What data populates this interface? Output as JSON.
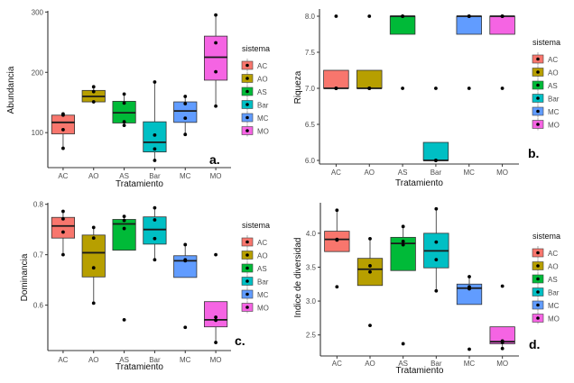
{
  "figure": {
    "legend_title": "sistema",
    "colors": {
      "AC": "#F8766D",
      "AO": "#B79F00",
      "AS": "#00BA38",
      "Bar": "#00BFC4",
      "MC": "#619CFF",
      "MO": "#F564E3"
    }
  },
  "chart_data": [
    {
      "type": "box",
      "panel_label": "a.",
      "title": "",
      "xlabel": "Tratamiento",
      "ylabel": "Abundancia",
      "ylim": [
        42,
        302
      ],
      "yticks": [
        100,
        200,
        300
      ],
      "ytick_labels": [
        "100",
        "200",
        "300"
      ],
      "categories": [
        "AC",
        "AO",
        "AS",
        "Bar",
        "MC",
        "MO"
      ],
      "legend": {
        "title": "sistema",
        "entries": [
          "AC",
          "AO",
          "AS",
          "Bar",
          "MC",
          "MO"
        ],
        "placement": "right"
      },
      "grid": false,
      "boxes": [
        {
          "category": "AC",
          "lower": 74,
          "q1": 98,
          "median": 117,
          "q3": 129,
          "upper": 131,
          "points": [
            131,
            129,
            105,
            74
          ]
        },
        {
          "category": "AO",
          "lower": 151,
          "q1": 151,
          "median": 160,
          "q3": 170,
          "upper": 176,
          "points": [
            176,
            168,
            151
          ]
        },
        {
          "category": "AS",
          "lower": 112,
          "q1": 116,
          "median": 133,
          "q3": 152,
          "upper": 164,
          "points": [
            164,
            149,
            118,
            112
          ]
        },
        {
          "category": "Bar",
          "lower": 54,
          "q1": 68,
          "median": 84,
          "q3": 118,
          "upper": 184,
          "points": [
            184,
            96,
            73,
            54
          ]
        },
        {
          "category": "MC",
          "lower": 97,
          "q1": 117,
          "median": 136,
          "q3": 151,
          "upper": 160,
          "points": [
            160,
            148,
            124,
            97
          ]
        },
        {
          "category": "MO",
          "lower": 144,
          "q1": 187,
          "median": 225,
          "q3": 260,
          "upper": 295,
          "points": [
            295,
            249,
            201,
            144
          ]
        }
      ]
    },
    {
      "type": "box",
      "panel_label": "b.",
      "title": "",
      "xlabel": "Tratamiento",
      "ylabel": "Riqueza",
      "ylim": [
        5.95,
        8.1
      ],
      "yticks": [
        6.0,
        6.5,
        7.0,
        7.5,
        8.0
      ],
      "ytick_labels": [
        "6.0",
        "6.5",
        "7.0",
        "7.5",
        "8.0"
      ],
      "categories": [
        "AC",
        "AO",
        "AS",
        "Bar",
        "MC",
        "MO"
      ],
      "legend": {
        "title": "sistema",
        "entries": [
          "AC",
          "AO",
          "AS",
          "Bar",
          "MC",
          "MO"
        ],
        "placement": "right"
      },
      "grid": false,
      "boxes": [
        {
          "category": "AC",
          "lower": 7.0,
          "q1": 7.0,
          "median": 7.0,
          "q3": 7.25,
          "upper": 7.25,
          "points": [
            8,
            7,
            7,
            7
          ]
        },
        {
          "category": "AO",
          "lower": 7.0,
          "q1": 7.0,
          "median": 7.0,
          "q3": 7.25,
          "upper": 7.25,
          "points": [
            8,
            7,
            7,
            7
          ]
        },
        {
          "category": "AS",
          "lower": 7.75,
          "q1": 7.75,
          "median": 8.0,
          "q3": 8.0,
          "upper": 8.0,
          "points": [
            8,
            8,
            8,
            7
          ]
        },
        {
          "category": "Bar",
          "lower": 6.0,
          "q1": 6.0,
          "median": 6.0,
          "q3": 6.25,
          "upper": 6.25,
          "points": [
            7,
            6,
            6,
            6
          ]
        },
        {
          "category": "MC",
          "lower": 7.75,
          "q1": 7.75,
          "median": 8.0,
          "q3": 8.0,
          "upper": 8.0,
          "points": [
            8,
            8,
            8,
            7
          ]
        },
        {
          "category": "MO",
          "lower": 7.75,
          "q1": 7.75,
          "median": 8.0,
          "q3": 8.0,
          "upper": 8.0,
          "points": [
            8,
            8,
            8,
            7
          ]
        }
      ]
    },
    {
      "type": "box",
      "panel_label": "c.",
      "title": "",
      "xlabel": "Tratamiento",
      "ylabel": "Dominancia",
      "ylim": [
        0.51,
        0.803
      ],
      "yticks": [
        0.6,
        0.7,
        0.8
      ],
      "ytick_labels": [
        "0.6",
        "0.7",
        "0.8"
      ],
      "categories": [
        "AC",
        "AO",
        "AS",
        "Bar",
        "MC",
        "MO"
      ],
      "legend": {
        "title": "sistema",
        "entries": [
          "AC",
          "AO",
          "AS",
          "Bar",
          "MC",
          "MO"
        ],
        "placement": "right"
      },
      "grid": false,
      "boxes": [
        {
          "category": "AC",
          "lower": 0.7,
          "q1": 0.733,
          "median": 0.757,
          "q3": 0.774,
          "upper": 0.786,
          "points": [
            0.786,
            0.771,
            0.745,
            0.7
          ]
        },
        {
          "category": "AO",
          "lower": 0.604,
          "q1": 0.656,
          "median": 0.704,
          "q3": 0.739,
          "upper": 0.754,
          "points": [
            0.754,
            0.733,
            0.674,
            0.604
          ]
        },
        {
          "category": "AS",
          "lower": 0.709,
          "q1": 0.709,
          "median": 0.761,
          "q3": 0.77,
          "upper": 0.776,
          "points": [
            0.776,
            0.768,
            0.752,
            0.571
          ]
        },
        {
          "category": "Bar",
          "lower": 0.69,
          "q1": 0.721,
          "median": 0.75,
          "q3": 0.775,
          "upper": 0.793,
          "points": [
            0.793,
            0.769,
            0.732,
            0.69
          ]
        },
        {
          "category": "MC",
          "lower": 0.655,
          "q1": 0.655,
          "median": 0.688,
          "q3": 0.698,
          "upper": 0.72,
          "points": [
            0.72,
            0.69,
            0.688,
            0.556
          ]
        },
        {
          "category": "MO",
          "lower": 0.526,
          "q1": 0.557,
          "median": 0.571,
          "q3": 0.607,
          "upper": 0.607,
          "points": [
            0.7,
            0.576,
            0.57,
            0.526
          ]
        }
      ]
    },
    {
      "type": "box",
      "panel_label": "d.",
      "title": "",
      "xlabel": "Tratamiento",
      "ylabel": "Indice de diversidad",
      "ylim": [
        2.19,
        4.45
      ],
      "yticks": [
        2.5,
        3.0,
        3.5,
        4.0
      ],
      "ytick_labels": [
        "2.5",
        "3.0",
        "3.5",
        "4.0"
      ],
      "categories": [
        "AC",
        "AO",
        "AS",
        "Bar",
        "MC",
        "MO"
      ],
      "legend": {
        "title": "sistema",
        "entries": [
          "AC",
          "AO",
          "AS",
          "Bar",
          "MC",
          "MO"
        ],
        "placement": "right"
      },
      "grid": false,
      "boxes": [
        {
          "category": "AC",
          "lower": 3.73,
          "q1": 3.73,
          "median": 3.91,
          "q3": 4.03,
          "upper": 4.34,
          "points": [
            4.34,
            3.91,
            3.9,
            3.21
          ]
        },
        {
          "category": "AO",
          "lower": 3.23,
          "q1": 3.23,
          "median": 3.47,
          "q3": 3.63,
          "upper": 3.92,
          "points": [
            3.92,
            3.52,
            3.43,
            2.64
          ]
        },
        {
          "category": "AS",
          "lower": 3.45,
          "q1": 3.45,
          "median": 3.85,
          "q3": 3.94,
          "upper": 4.1,
          "points": [
            4.1,
            3.88,
            3.83,
            2.37
          ]
        },
        {
          "category": "Bar",
          "lower": 3.15,
          "q1": 3.49,
          "median": 3.74,
          "q3": 4.0,
          "upper": 4.36,
          "points": [
            4.36,
            3.87,
            3.61,
            3.15
          ]
        },
        {
          "category": "MC",
          "lower": 2.95,
          "q1": 2.95,
          "median": 3.19,
          "q3": 3.25,
          "upper": 3.36,
          "points": [
            3.36,
            3.21,
            3.18,
            2.29
          ]
        },
        {
          "category": "MO",
          "lower": 2.3,
          "q1": 2.37,
          "median": 2.4,
          "q3": 2.62,
          "upper": 2.62,
          "points": [
            3.22,
            2.41,
            2.39,
            2.3
          ]
        }
      ]
    }
  ]
}
